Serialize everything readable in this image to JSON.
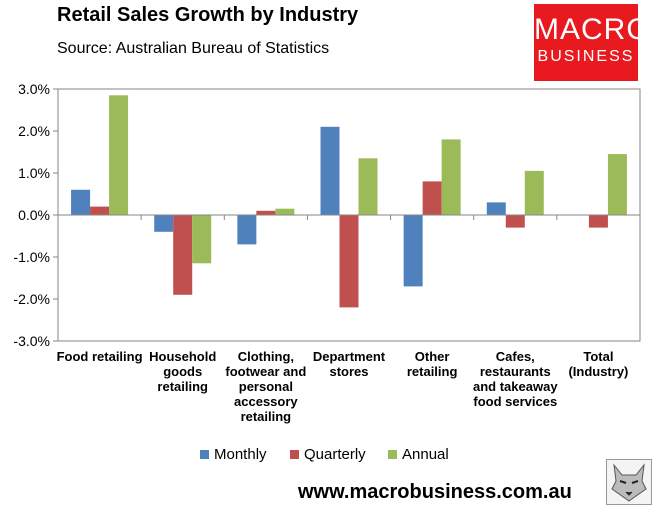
{
  "header": {
    "title": "Retail Sales Growth by Industry",
    "subtitle": "Source: Australian Bureau of Statistics"
  },
  "logo": {
    "line1": "MACRO",
    "line2": "BUSINESS",
    "color": "#e8191f"
  },
  "footer": {
    "url": "www.macrobusiness.com.au"
  },
  "colors": {
    "Monthly": "#4f81bd",
    "Quarterly": "#c0504d",
    "Annual": "#9bbb59"
  },
  "chart_data": {
    "type": "bar",
    "title": "Retail Sales Growth by Industry",
    "xlabel": "",
    "ylabel": "",
    "ylim": [
      -3,
      3
    ],
    "yticks": [
      "-3.0%",
      "-2.0%",
      "-1.0%",
      "0.0%",
      "1.0%",
      "2.0%",
      "3.0%"
    ],
    "grid": false,
    "legend": "bottom",
    "categories": [
      [
        "Food retailing"
      ],
      [
        "Household",
        "goods",
        "retailing"
      ],
      [
        "Clothing,",
        "footwear and",
        "personal",
        "accessory",
        "retailing"
      ],
      [
        "Department",
        "stores"
      ],
      [
        "Other",
        "retailing"
      ],
      [
        "Cafes,",
        "restaurants",
        "and takeaway",
        "food services"
      ],
      [
        "Total",
        "(Industry)"
      ]
    ],
    "series": [
      {
        "name": "Monthly",
        "values": [
          0.6,
          -0.4,
          -0.7,
          2.1,
          -1.7,
          0.3,
          0.0
        ]
      },
      {
        "name": "Quarterly",
        "values": [
          0.2,
          -1.9,
          0.1,
          -2.2,
          0.8,
          -0.3,
          -0.3
        ]
      },
      {
        "name": "Annual",
        "values": [
          2.85,
          -1.15,
          0.15,
          1.35,
          1.8,
          1.05,
          1.45
        ]
      }
    ]
  }
}
